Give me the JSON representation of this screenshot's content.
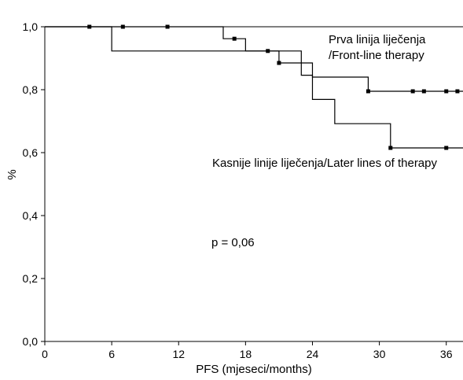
{
  "chart_data": {
    "type": "line",
    "step": true,
    "xlabel": "PFS (mjeseci/months)",
    "ylabel": "%",
    "xlim": [
      0,
      37.5
    ],
    "ylim": [
      0,
      1
    ],
    "xticks": [
      0,
      6,
      12,
      18,
      24,
      30,
      36
    ],
    "xtick_labels": [
      "0",
      "6",
      "12",
      "18",
      "24",
      "30",
      "36"
    ],
    "yticks": [
      0,
      0.2,
      0.4,
      0.6,
      0.8,
      1.0
    ],
    "ytick_labels": [
      "0,0",
      "0,2",
      "0,4",
      "0,6",
      "0,8",
      "1,0"
    ],
    "grid": false,
    "series": [
      {
        "name": "Prva linija liječenja /Front-line therapy",
        "steps": [
          [
            0,
            1.0
          ],
          [
            16,
            0.962
          ],
          [
            18,
            0.923
          ],
          [
            21,
            0.885
          ],
          [
            23,
            0.885
          ],
          [
            24,
            0.84
          ],
          [
            29,
            0.795
          ],
          [
            37.5,
            0.795
          ]
        ],
        "censored": [
          [
            4,
            1.0
          ],
          [
            7,
            1.0
          ],
          [
            11,
            1.0
          ],
          [
            17,
            0.962
          ],
          [
            20,
            0.923
          ],
          [
            21,
            0.885
          ],
          [
            29,
            0.795
          ],
          [
            33,
            0.795
          ],
          [
            34,
            0.795
          ],
          [
            36,
            0.795
          ],
          [
            37,
            0.795
          ]
        ]
      },
      {
        "name": "Kasnije linije liječenja/Later lines of therapy",
        "steps": [
          [
            0,
            1.0
          ],
          [
            6,
            0.923
          ],
          [
            23,
            0.846
          ],
          [
            24,
            0.769
          ],
          [
            26,
            0.692
          ],
          [
            31,
            0.615
          ],
          [
            37.5,
            0.615
          ]
        ],
        "censored": [
          [
            31,
            0.615
          ],
          [
            36,
            0.615
          ]
        ]
      }
    ],
    "annotations": [
      {
        "text": "Prva linija liječenja",
        "target": "series0"
      },
      {
        "text": "/Front-line therapy",
        "target": "series0"
      },
      {
        "text": "Kasnije linije liječenja/Later lines of therapy",
        "target": "series1"
      },
      {
        "text": "p = 0,06",
        "target": "plot"
      }
    ]
  }
}
